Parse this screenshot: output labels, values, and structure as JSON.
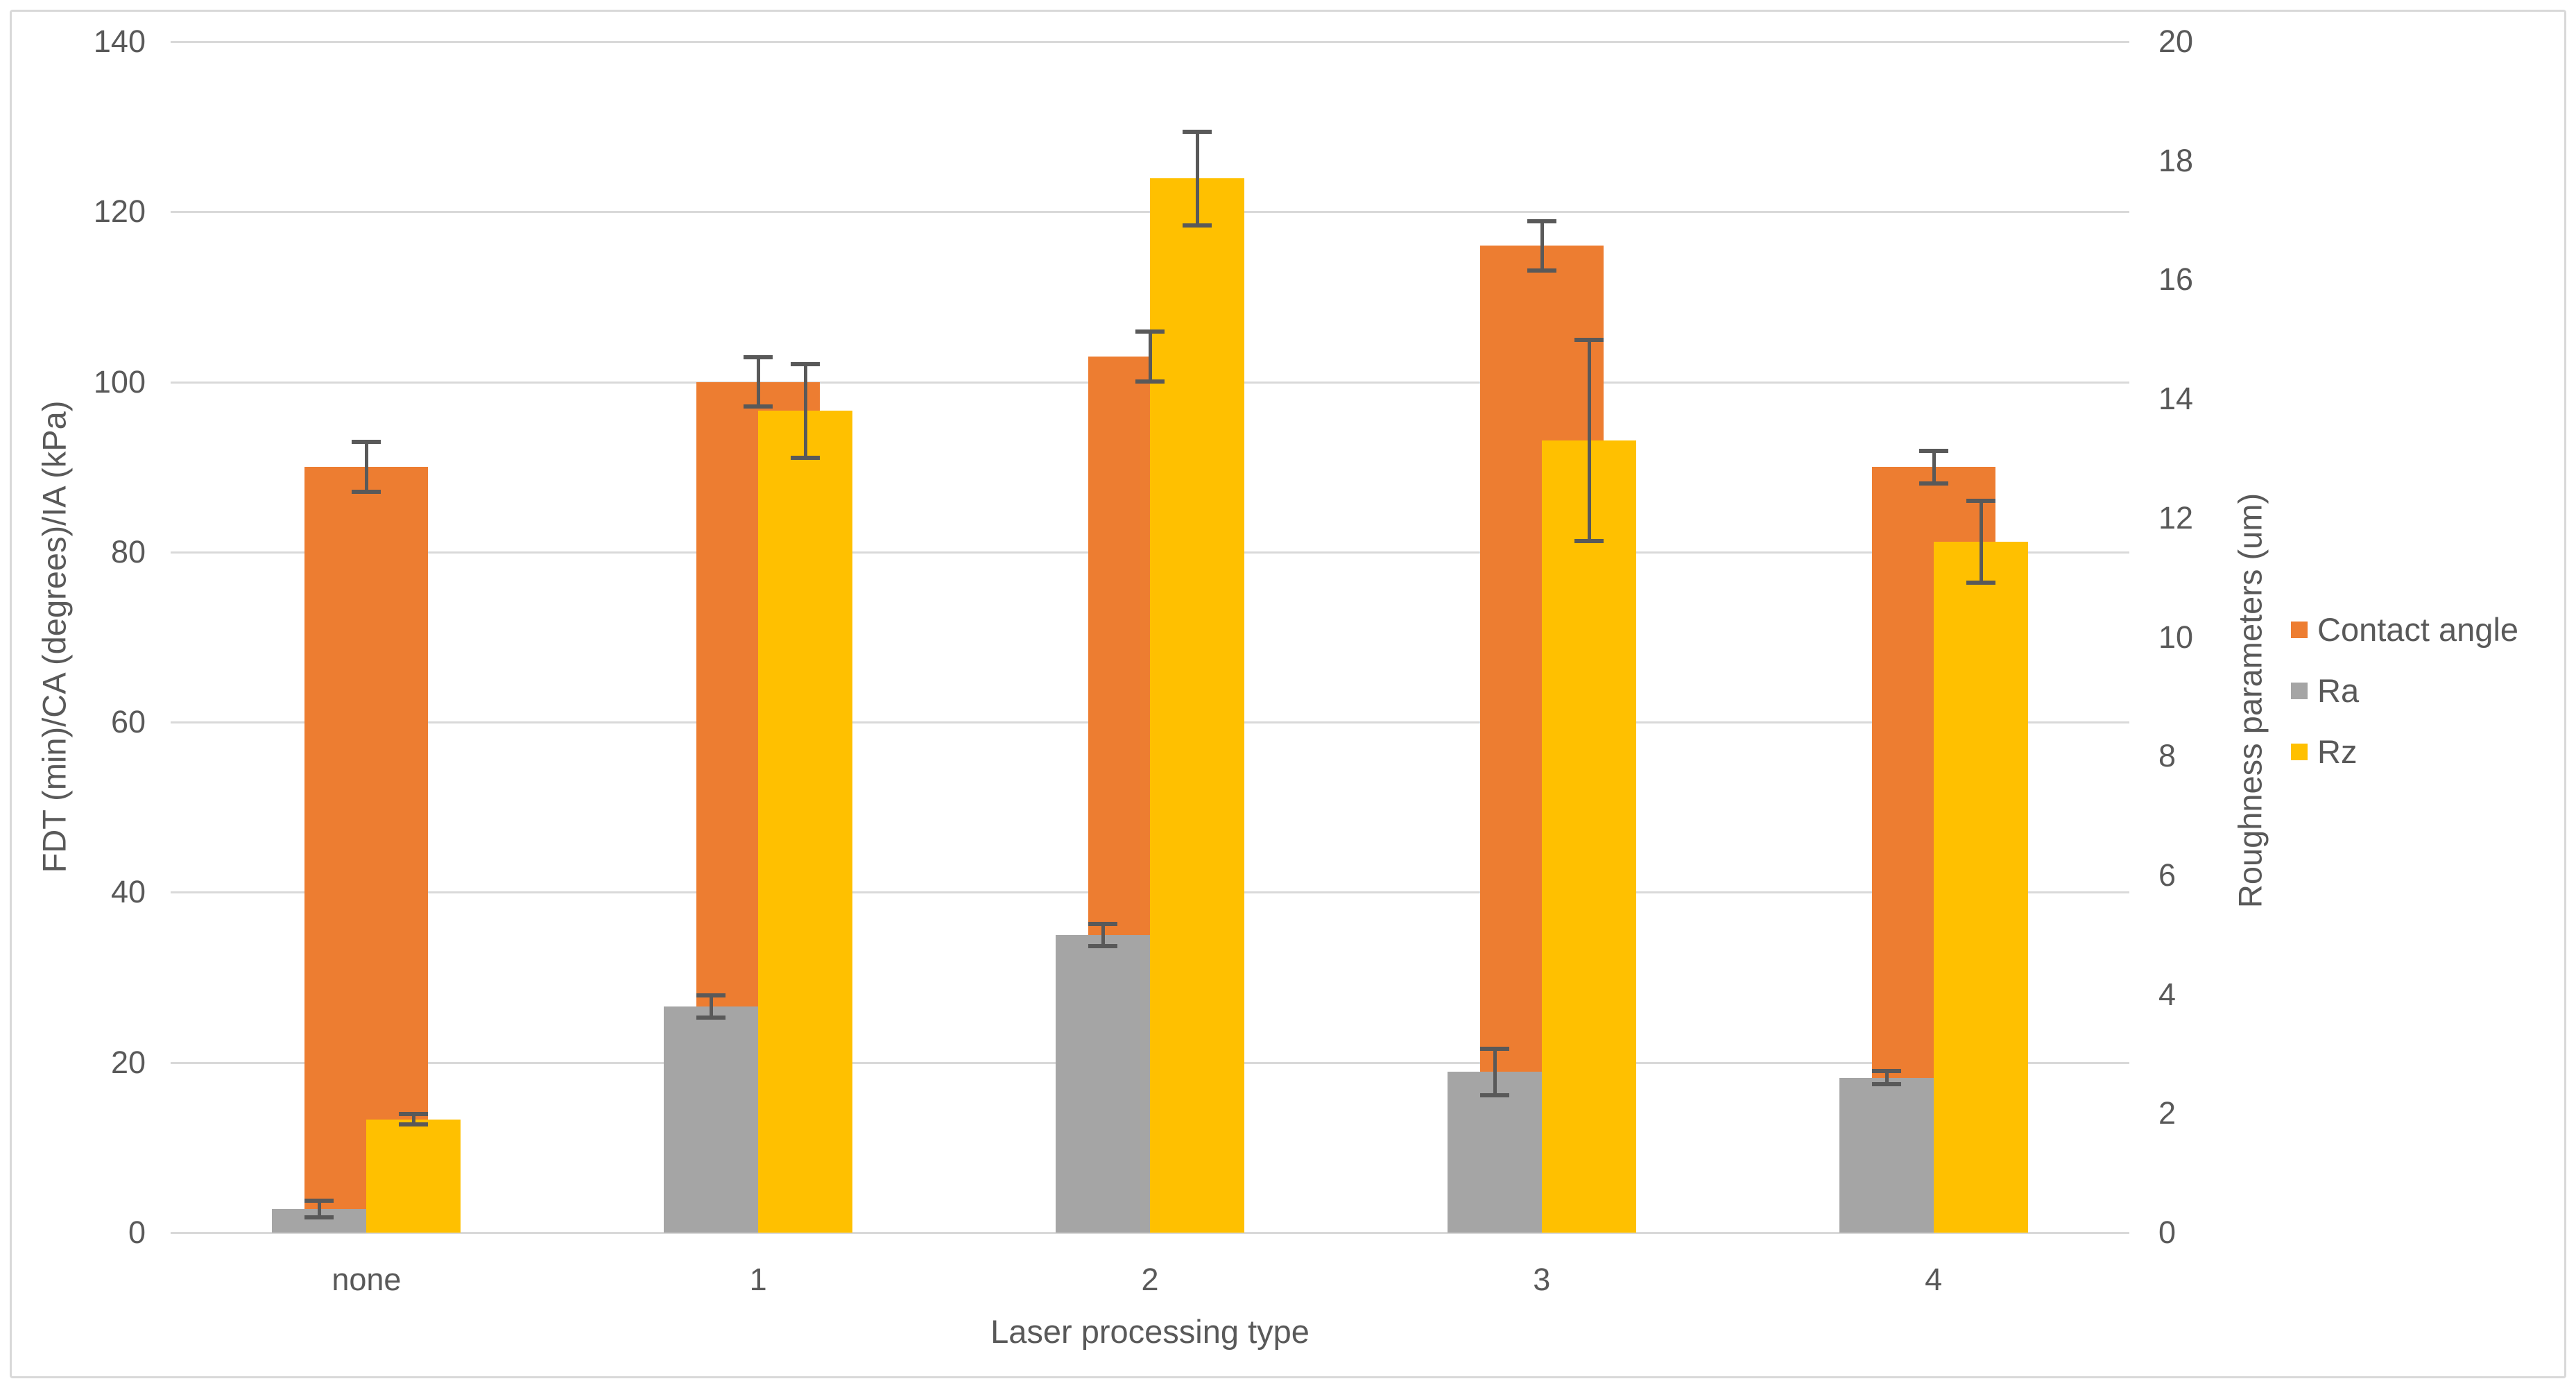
{
  "chart_data": {
    "type": "bar",
    "title": "",
    "categories": [
      "none",
      "1",
      "2",
      "3",
      "4"
    ],
    "x_axis": {
      "label": "Laser processing type"
    },
    "left_axis": {
      "label": "FDT (min)/CA (degrees)/IA (kPa)",
      "min": 0,
      "max": 140,
      "step": 20,
      "ticks": [
        0,
        20,
        40,
        60,
        80,
        100,
        120,
        140
      ]
    },
    "right_axis": {
      "label": "Roughness parameters (um)",
      "min": 0,
      "max": 20,
      "step": 2,
      "ticks": [
        0,
        2,
        4,
        6,
        8,
        10,
        12,
        14,
        16,
        18,
        20
      ]
    },
    "series": [
      {
        "name": "Contact angle",
        "axis": "left",
        "color": "#ED7D31",
        "values": [
          90,
          100,
          103,
          116,
          90
        ],
        "errors": [
          3,
          3,
          3,
          3,
          2
        ]
      },
      {
        "name": "Ra",
        "axis": "right",
        "color": "#A5A5A5",
        "values": [
          0.4,
          3.8,
          5.0,
          2.7,
          2.6
        ],
        "errors": [
          0.15,
          0.2,
          0.2,
          0.4,
          0.12
        ]
      },
      {
        "name": "Rz",
        "axis": "right",
        "color": "#FFC000",
        "values": [
          1.9,
          13.8,
          17.7,
          13.3,
          11.6
        ],
        "errors": [
          0.1,
          0.8,
          0.8,
          1.7,
          0.7
        ]
      }
    ],
    "legend": {
      "position": "right",
      "items": [
        "Contact angle",
        "Ra",
        "Rz"
      ]
    },
    "grid": true,
    "colors": {
      "background": "#FFFFFF",
      "grid": "#D9D9D9",
      "border": "#D9D9D9",
      "axis_text": "#595959",
      "error_bar": "#595959"
    }
  }
}
